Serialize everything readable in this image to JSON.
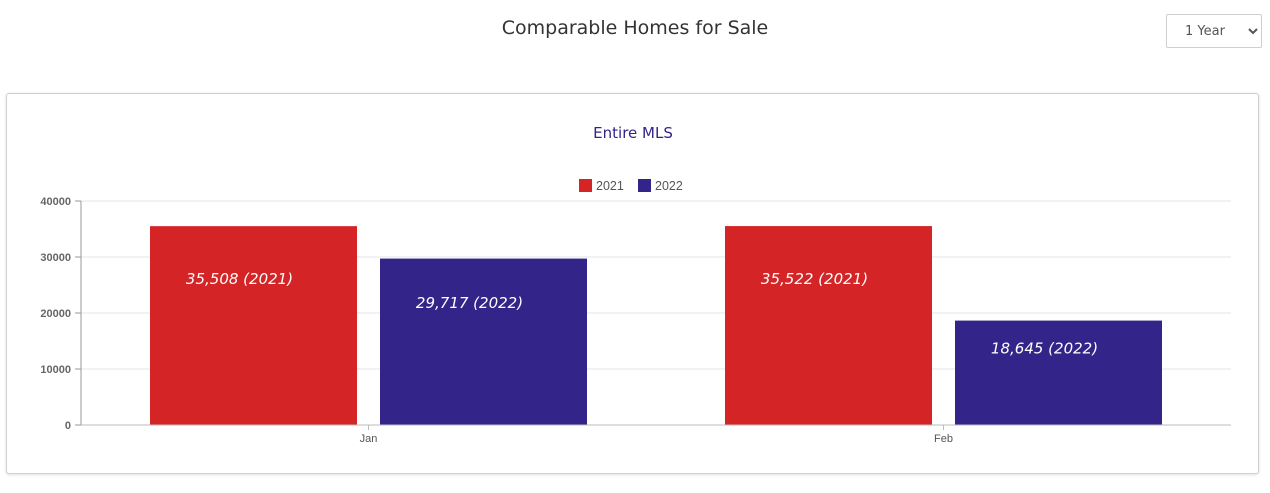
{
  "header": {
    "title": "Comparable Homes for Sale",
    "period_selected": "1 Year",
    "period_options": [
      "1 Year"
    ]
  },
  "colors": {
    "series_2021": "#d42426",
    "series_2022": "#332489",
    "subtitle": "#332489"
  },
  "chart_data": {
    "type": "bar",
    "title": "Entire MLS",
    "categories": [
      "Jan",
      "Feb"
    ],
    "series": [
      {
        "name": "2021",
        "values": [
          35508,
          35522
        ],
        "labels": [
          "35,508 (2021)",
          "35,522 (2021)"
        ]
      },
      {
        "name": "2022",
        "values": [
          29717,
          18645
        ],
        "labels": [
          "29,717 (2022)",
          "18,645 (2022)"
        ]
      }
    ],
    "ylim": [
      0,
      40000
    ],
    "yticks": [
      0,
      10000,
      20000,
      30000,
      40000
    ],
    "ytick_labels": [
      "0",
      "10000",
      "20000",
      "30000",
      "40000"
    ],
    "xlabel": "",
    "ylabel": "",
    "legend_position": "top-center",
    "grid": true
  }
}
